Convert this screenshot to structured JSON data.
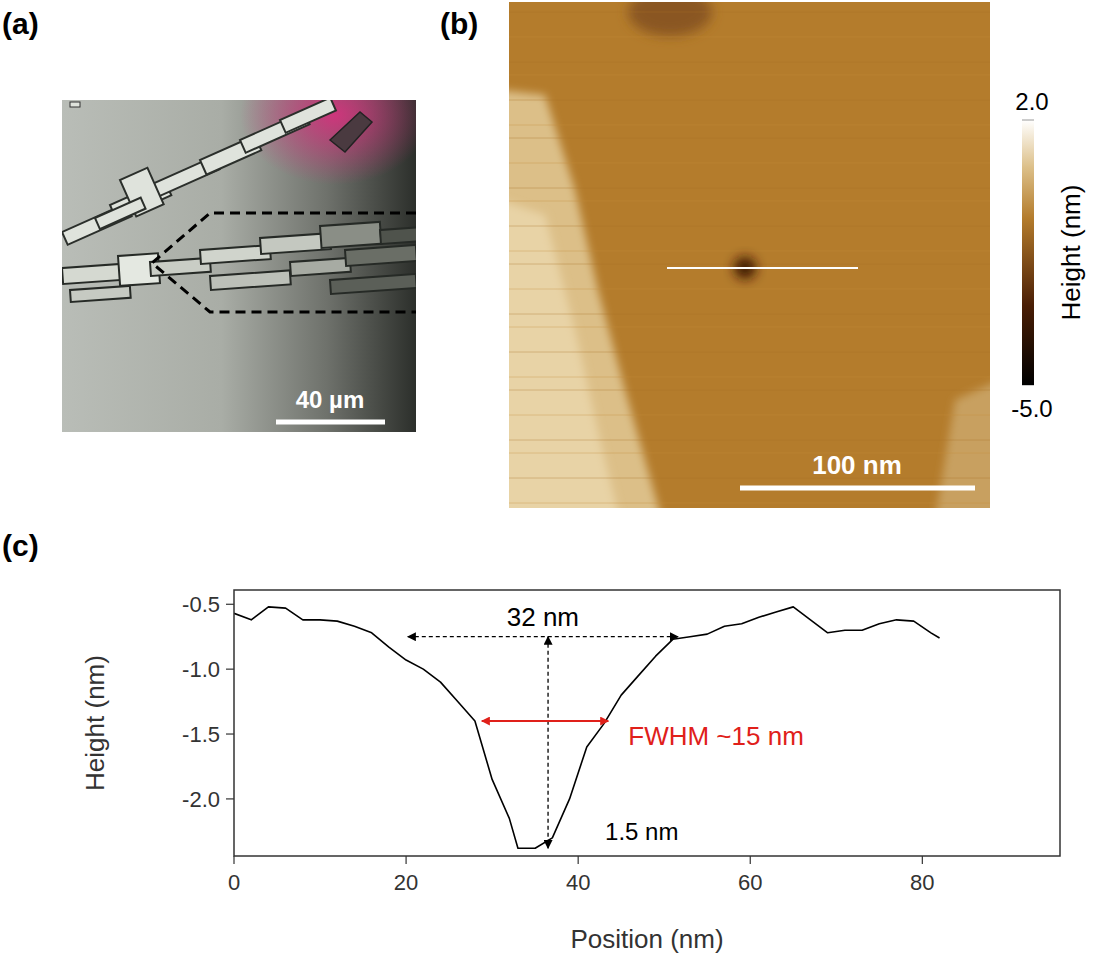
{
  "panels": [
    {
      "label": "(a)",
      "scale_bar": "40 µm"
    },
    {
      "label": "(b)",
      "scale_bar": "100 nm",
      "colorbar": {
        "title": "Height (nm)",
        "range": [
          -5,
          2
        ],
        "ticks": [
          {
            "value": 2,
            "label": "2.0"
          },
          {
            "value": -5,
            "label": "-5.0"
          }
        ]
      }
    },
    {
      "label": "(c)"
    }
  ],
  "chart_data": {
    "type": "line",
    "x_label": "Position (nm)",
    "y_label": "Height (nm)",
    "color": "#000000",
    "x": [
      0,
      2,
      4,
      6,
      8,
      10,
      12,
      14,
      16,
      18,
      20,
      22,
      24,
      26,
      28,
      30,
      32,
      33,
      35,
      37,
      39,
      41,
      43,
      45,
      47,
      49,
      51,
      53,
      55,
      57,
      59,
      61,
      63,
      65,
      67,
      69,
      71,
      73,
      75,
      77,
      79,
      81,
      82
    ],
    "values": [
      -0.57,
      -0.62,
      -0.52,
      -0.53,
      -0.62,
      -0.62,
      -0.63,
      -0.67,
      -0.72,
      -0.83,
      -0.93,
      -1.0,
      -1.1,
      -1.25,
      -1.4,
      -1.85,
      -2.15,
      -2.38,
      -2.38,
      -2.3,
      -2.0,
      -1.6,
      -1.42,
      -1.2,
      -1.05,
      -0.9,
      -0.77,
      -0.75,
      -0.73,
      -0.67,
      -0.65,
      -0.6,
      -0.56,
      -0.52,
      -0.62,
      -0.72,
      -0.7,
      -0.7,
      -0.65,
      -0.62,
      -0.63,
      -0.72,
      -0.76
    ],
    "xlim": [
      0,
      96
    ],
    "ylim": [
      -2.44,
      -0.39
    ],
    "xticks": [
      0,
      20,
      40,
      60,
      80
    ],
    "yticks": [
      -0.5,
      {
        "value": -1,
        "label": "-1.0"
      },
      -1.5,
      {
        "value": -2,
        "label": "-2.0"
      }
    ],
    "grid": false,
    "annotations": [
      {
        "text": "32 nm",
        "x": [
          20.2,
          51.6
        ],
        "y": -0.75
      },
      {
        "text": "1.5 nm",
        "x": 36.5,
        "y": [
          -0.75,
          -2.38
        ]
      },
      {
        "text": "FWHM ~15 nm",
        "x": [
          28.8,
          43.5
        ],
        "y": -1.4,
        "color": "#e0201a"
      }
    ]
  }
}
